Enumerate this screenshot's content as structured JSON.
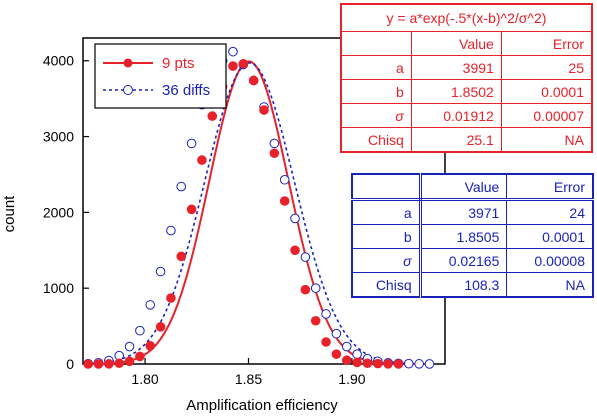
{
  "chart_data": {
    "type": "scatter",
    "title": "",
    "xlabel": "Amplification efficiency",
    "ylabel": "count",
    "xlim": [
      1.77,
      1.945
    ],
    "ylim": [
      0,
      4300
    ],
    "xticks": [
      1.8,
      1.85,
      1.9
    ],
    "xtick_labels": [
      "1.80",
      "1.85",
      "1.90"
    ],
    "yticks": [
      0,
      1000,
      2000,
      3000,
      4000
    ],
    "ytick_labels": [
      "0",
      "1000",
      "2000",
      "3000",
      "4000"
    ],
    "grid": false,
    "legend_position": "top-left",
    "series": [
      {
        "name": "9 pts",
        "color": "#e8222a",
        "marker": "filled-circle",
        "line": "solid",
        "x": [
          1.7725,
          1.7775,
          1.7825,
          1.7875,
          1.7925,
          1.7975,
          1.8025,
          1.8075,
          1.8125,
          1.8175,
          1.8225,
          1.8275,
          1.8325,
          1.8375,
          1.8425,
          1.8475,
          1.8525,
          1.8575,
          1.8625,
          1.8675,
          1.8725,
          1.8775,
          1.8825,
          1.8875,
          1.8925,
          1.8975,
          1.9025,
          1.9075,
          1.9125,
          1.9175,
          1.9225
        ],
        "y": [
          0,
          0,
          2,
          10,
          35,
          100,
          240,
          490,
          870,
          1420,
          2040,
          2690,
          3270,
          3660,
          3930,
          3960,
          3740,
          3350,
          2780,
          2150,
          1500,
          980,
          570,
          290,
          130,
          50,
          20,
          10,
          5,
          2,
          0
        ]
      },
      {
        "name": "36 diffs",
        "color": "#1a23b8",
        "marker": "open-circle",
        "line": "dashed",
        "x": [
          1.7725,
          1.7775,
          1.7825,
          1.7875,
          1.7925,
          1.7975,
          1.8025,
          1.8075,
          1.8125,
          1.8175,
          1.8225,
          1.8275,
          1.8325,
          1.8375,
          1.8425,
          1.8475,
          1.8525,
          1.8575,
          1.8625,
          1.8675,
          1.8725,
          1.8775,
          1.8825,
          1.8875,
          1.8925,
          1.8975,
          1.9025,
          1.9075,
          1.9125,
          1.9175,
          1.9225,
          1.9275,
          1.9325,
          1.9375
        ],
        "y": [
          5,
          15,
          45,
          110,
          230,
          440,
          780,
          1220,
          1760,
          2340,
          2910,
          3420,
          3760,
          4000,
          4120,
          3950,
          3740,
          3390,
          2910,
          2430,
          1920,
          1410,
          1000,
          660,
          400,
          230,
          130,
          70,
          35,
          15,
          8,
          4,
          2,
          1
        ]
      }
    ],
    "fits": [
      {
        "series": "9 pts",
        "a": 3991,
        "b": 1.8502,
        "sigma": 0.01912
      },
      {
        "series": "36 diffs",
        "a": 3971,
        "b": 1.8505,
        "sigma": 0.02165
      }
    ]
  },
  "tables": {
    "red": {
      "formula": "y = a*exp(-.5*(x-b)^2/σ^2)",
      "header_value": "Value",
      "header_error": "Error",
      "rows": [
        {
          "name": "a",
          "value": "3991",
          "error": "25"
        },
        {
          "name": "b",
          "value": "1.8502",
          "error": "0.0001"
        },
        {
          "name": "σ",
          "value": "0.01912",
          "error": "0.00007"
        },
        {
          "name": "Chisq",
          "value": "25.1",
          "error": "NA"
        }
      ]
    },
    "blue": {
      "header_value": "Value",
      "header_error": "Error",
      "rows": [
        {
          "name": "a",
          "value": "3971",
          "error": "24"
        },
        {
          "name": "b",
          "value": "1.8505",
          "error": "0.0001"
        },
        {
          "name": "σ",
          "value": "0.02165",
          "error": "0.00008"
        },
        {
          "name": "Chisq",
          "value": "108.3",
          "error": "NA"
        }
      ]
    }
  }
}
